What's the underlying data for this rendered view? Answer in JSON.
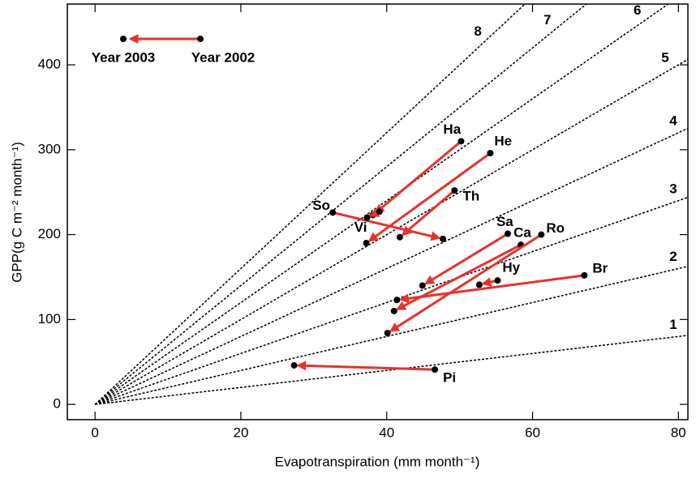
{
  "chart_data": {
    "type": "scatter",
    "x_label": "Evapotranspiration (mm month⁻¹)",
    "y_label": "GPP(g C m⁻² month⁻¹)",
    "xlim": [
      -3.8,
      81.3
    ],
    "ylim": [
      -18,
      471.6
    ],
    "xticks": [
      0,
      20,
      40,
      60,
      80
    ],
    "yticks": [
      0,
      100,
      200,
      300,
      400
    ],
    "ratio_lines": [
      1,
      2,
      3,
      4,
      5,
      6,
      7,
      8
    ],
    "arrow_color": "#e8322c",
    "legend": {
      "to": "Year 2003",
      "from": "Year 2002"
    },
    "sites": [
      {
        "name": "Ha",
        "x2002": 50.2,
        "y2002": 310,
        "x2003": 38.1,
        "y2003": 223
      },
      {
        "name": "He",
        "x2002": 54.2,
        "y2002": 296,
        "x2003": 37.2,
        "y2003": 190
      },
      {
        "name": "Th",
        "x2002": 49.3,
        "y2002": 252,
        "x2003": 41.8,
        "y2003": 197
      },
      {
        "name": "So",
        "x2002": 32.6,
        "y2002": 226,
        "x2003": 47.7,
        "y2003": 195
      },
      {
        "name": "Vi",
        "x2002": 39.0,
        "y2002": 227,
        "x2003": 37.3,
        "y2003": 220
      },
      {
        "name": "Sa",
        "x2002": 56.6,
        "y2002": 201,
        "x2003": 44.9,
        "y2003": 140
      },
      {
        "name": "Ca",
        "x2002": 58.4,
        "y2002": 188,
        "x2003": 41.0,
        "y2003": 110
      },
      {
        "name": "Ro",
        "x2002": 61.2,
        "y2002": 200,
        "x2003": 40.1,
        "y2003": 84
      },
      {
        "name": "Hy",
        "x2002": 55.2,
        "y2002": 146,
        "x2003": 52.7,
        "y2003": 141
      },
      {
        "name": "Br",
        "x2002": 67.1,
        "y2002": 152,
        "x2003": 41.4,
        "y2003": 123
      },
      {
        "name": "Pi",
        "x2002": 46.6,
        "y2002": 41,
        "x2003": 27.3,
        "y2003": 46
      }
    ]
  }
}
